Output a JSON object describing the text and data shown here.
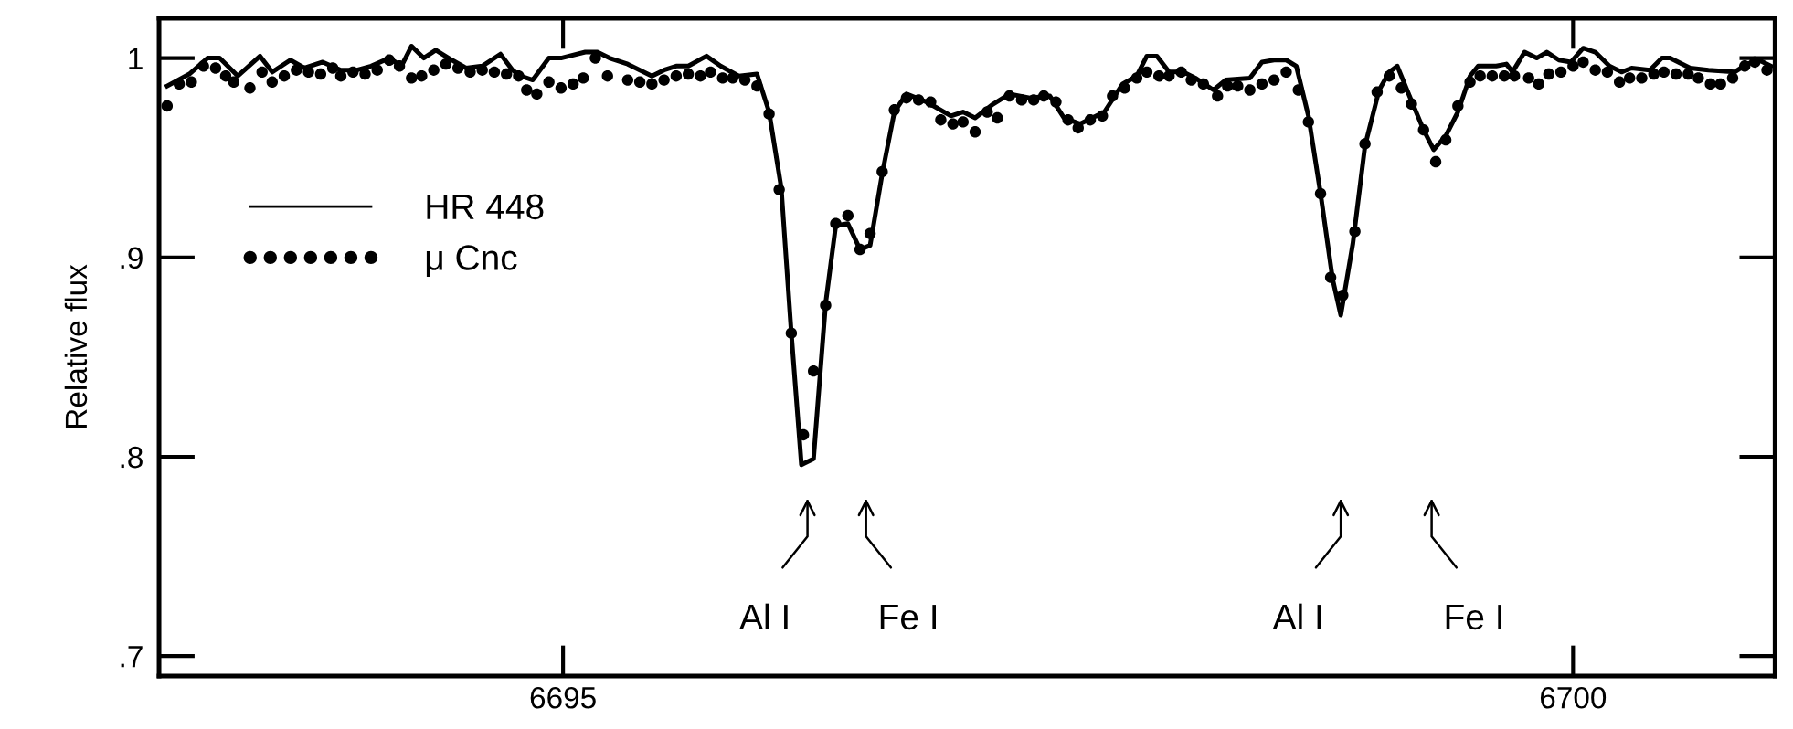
{
  "chart_data": {
    "type": "line",
    "ylabel": "Relative flux",
    "xlim": [
      6693,
      6701
    ],
    "ylim": [
      0.69,
      1.02
    ],
    "xticks": [
      6695,
      6700
    ],
    "yticks": [
      {
        "value": 0.7,
        "label": ".7"
      },
      {
        "value": 0.8,
        "label": ".8"
      },
      {
        "value": 0.9,
        "label": ".9"
      },
      {
        "value": 1,
        "label": "1"
      }
    ],
    "grid": false,
    "legend": "left",
    "annotations": [
      {
        "text": "Al I",
        "x": 6696.21
      },
      {
        "text": "Fe I",
        "x": 6696.5
      },
      {
        "text": "Al I",
        "x": 6698.85
      },
      {
        "text": "Fe I",
        "x": 6699.3
      }
    ],
    "series": [
      {
        "name": "HR 448",
        "color": "#000000",
        "line_style": "solid",
        "marker": "none",
        "x": [
          6693.04,
          6693.15,
          6693.24,
          6693.3,
          6693.39,
          6693.5,
          6693.56,
          6693.65,
          6693.72,
          6693.81,
          6693.9,
          6693.98,
          6694.05,
          6694.14,
          6694.2,
          6694.25,
          6694.31,
          6694.37,
          6694.45,
          6694.52,
          6694.6,
          6694.69,
          6694.75,
          6694.79,
          6694.85,
          6694.93,
          6694.99,
          6695.11,
          6695.17,
          6695.23,
          6695.32,
          6695.44,
          6695.5,
          6695.56,
          6695.62,
          6695.71,
          6695.78,
          6695.87,
          6695.96,
          6696.02,
          6696.08,
          6696.13,
          6696.18,
          6696.24,
          6696.3,
          6696.35,
          6696.41,
          6696.47,
          6696.52,
          6696.58,
          6696.64,
          6696.7,
          6696.8,
          6696.92,
          6696.98,
          6697.04,
          6697.13,
          6697.21,
          6697.31,
          6697.41,
          6697.48,
          6697.56,
          6697.68,
          6697.77,
          6697.84,
          6697.89,
          6697.94,
          6698.0,
          6698.07,
          6698.13,
          6698.22,
          6698.28,
          6698.4,
          6698.46,
          6698.52,
          6698.58,
          6698.63,
          6698.69,
          6698.75,
          6698.81,
          6698.85,
          6698.91,
          6698.97,
          6699.04,
          6699.09,
          6699.13,
          6699.19,
          6699.26,
          6699.31,
          6699.37,
          6699.43,
          6699.49,
          6699.53,
          6699.62,
          6699.67,
          6699.7,
          6699.76,
          6699.82,
          6699.87,
          6699.93,
          6699.99,
          6700.05,
          6700.11,
          6700.18,
          6700.24,
          6700.29,
          6700.38,
          6700.44,
          6700.48,
          6700.58,
          6700.67,
          6700.8,
          6700.86,
          6700.92,
          6700.98
        ],
        "values": [
          0.986,
          0.992,
          1.0,
          1.0,
          0.991,
          1.001,
          0.993,
          0.999,
          0.995,
          0.998,
          0.994,
          0.994,
          0.996,
          1.0,
          0.996,
          1.006,
          1.0,
          1.004,
          0.999,
          0.995,
          0.996,
          1.002,
          0.994,
          0.991,
          0.989,
          1.0,
          1.0,
          1.003,
          1.003,
          1.0,
          0.997,
          0.991,
          0.994,
          0.996,
          0.996,
          1.001,
          0.996,
          0.991,
          0.992,
          0.973,
          0.935,
          0.862,
          0.796,
          0.799,
          0.877,
          0.916,
          0.917,
          0.904,
          0.906,
          0.942,
          0.973,
          0.982,
          0.978,
          0.971,
          0.973,
          0.97,
          0.977,
          0.982,
          0.98,
          0.981,
          0.97,
          0.967,
          0.973,
          0.987,
          0.991,
          1.001,
          1.001,
          0.993,
          0.993,
          0.99,
          0.984,
          0.989,
          0.99,
          0.998,
          0.999,
          0.999,
          0.996,
          0.971,
          0.932,
          0.889,
          0.871,
          0.907,
          0.956,
          0.984,
          0.993,
          0.996,
          0.981,
          0.964,
          0.954,
          0.961,
          0.973,
          0.991,
          0.996,
          0.996,
          0.997,
          0.993,
          1.003,
          1.0,
          1.003,
          0.999,
          0.998,
          1.005,
          1.003,
          0.996,
          0.993,
          0.995,
          0.994,
          1.0,
          1.0,
          0.995,
          0.994,
          0.993,
          0.997,
          0.999,
          0.996
        ]
      },
      {
        "name": "μ Cnc",
        "type": "scatter",
        "color": "#000000",
        "marker": "circle",
        "x": [
          6693.04,
          6693.1,
          6693.16,
          6693.22,
          6693.28,
          6693.33,
          6693.37,
          6693.45,
          6693.51,
          6693.56,
          6693.62,
          6693.68,
          6693.74,
          6693.8,
          6693.86,
          6693.9,
          6693.96,
          6694.02,
          6694.08,
          6694.14,
          6694.19,
          6694.25,
          6694.3,
          6694.36,
          6694.42,
          6694.48,
          6694.54,
          6694.6,
          6694.66,
          6694.72,
          6694.78,
          6694.82,
          6694.87,
          6694.93,
          6694.99,
          6695.05,
          6695.1,
          6695.16,
          6695.22,
          6695.32,
          6695.38,
          6695.44,
          6695.5,
          6695.56,
          6695.62,
          6695.68,
          6695.73,
          6695.79,
          6695.84,
          6695.9,
          6695.96,
          6696.02,
          6696.07,
          6696.13,
          6696.19,
          6696.24,
          6696.3,
          6696.35,
          6696.41,
          6696.47,
          6696.52,
          6696.58,
          6696.64,
          6696.7,
          6696.76,
          6696.82,
          6696.87,
          6696.93,
          6696.98,
          6697.04,
          6697.1,
          6697.15,
          6697.21,
          6697.27,
          6697.33,
          6697.38,
          6697.44,
          6697.5,
          6697.55,
          6697.61,
          6697.67,
          6697.72,
          6697.78,
          6697.84,
          6697.89,
          6697.95,
          6698.0,
          6698.06,
          6698.11,
          6698.17,
          6698.24,
          6698.29,
          6698.34,
          6698.4,
          6698.46,
          6698.52,
          6698.58,
          6698.64,
          6698.69,
          6698.75,
          6698.8,
          6698.86,
          6698.92,
          6698.97,
          6699.03,
          6699.09,
          6699.15,
          6699.2,
          6699.26,
          6699.32,
          6699.37,
          6699.43,
          6699.49,
          6699.54,
          6699.6,
          6699.66,
          6699.71,
          6699.78,
          6699.83,
          6699.88,
          6699.94,
          6700.0,
          6700.05,
          6700.11,
          6700.17,
          6700.23,
          6700.28,
          6700.34,
          6700.4,
          6700.45,
          6700.51,
          6700.57,
          6700.62,
          6700.68,
          6700.73,
          6700.79,
          6700.85,
          6700.9,
          6700.96
        ],
        "values": [
          0.976,
          0.987,
          0.988,
          0.996,
          0.995,
          0.991,
          0.988,
          0.985,
          0.993,
          0.988,
          0.991,
          0.994,
          0.993,
          0.992,
          0.995,
          0.991,
          0.993,
          0.992,
          0.994,
          0.999,
          0.996,
          0.99,
          0.991,
          0.994,
          0.997,
          0.995,
          0.993,
          0.994,
          0.993,
          0.992,
          0.991,
          0.984,
          0.982,
          0.988,
          0.985,
          0.987,
          0.99,
          1.0,
          0.991,
          0.989,
          0.988,
          0.987,
          0.989,
          0.991,
          0.992,
          0.991,
          0.993,
          0.99,
          0.99,
          0.989,
          0.986,
          0.972,
          0.934,
          0.862,
          0.811,
          0.843,
          0.876,
          0.917,
          0.921,
          0.904,
          0.912,
          0.943,
          0.974,
          0.98,
          0.979,
          0.978,
          0.969,
          0.967,
          0.968,
          0.963,
          0.973,
          0.97,
          0.981,
          0.979,
          0.979,
          0.981,
          0.978,
          0.969,
          0.965,
          0.969,
          0.971,
          0.981,
          0.985,
          0.99,
          0.993,
          0.991,
          0.991,
          0.993,
          0.989,
          0.987,
          0.981,
          0.986,
          0.986,
          0.984,
          0.987,
          0.989,
          0.993,
          0.984,
          0.968,
          0.932,
          0.89,
          0.881,
          0.913,
          0.957,
          0.983,
          0.991,
          0.985,
          0.977,
          0.964,
          0.948,
          0.959,
          0.976,
          0.988,
          0.991,
          0.991,
          0.991,
          0.991,
          0.99,
          0.987,
          0.992,
          0.993,
          0.996,
          0.998,
          0.994,
          0.993,
          0.988,
          0.99,
          0.99,
          0.992,
          0.993,
          0.992,
          0.992,
          0.99,
          0.987,
          0.987,
          0.99,
          0.996,
          0.998,
          0.994
        ]
      }
    ]
  }
}
